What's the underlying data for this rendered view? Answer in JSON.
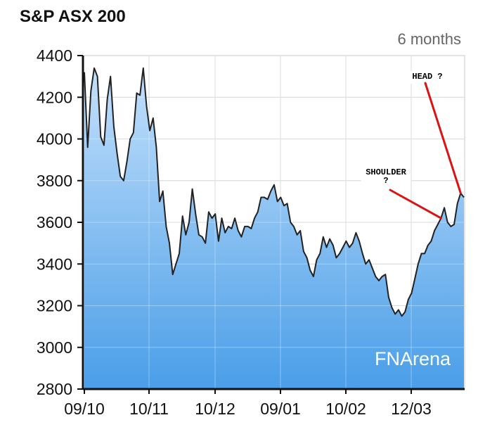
{
  "chart_data": {
    "type": "area",
    "title": "S&P ASX 200",
    "period_label": "6 months",
    "watermark": "FNArena",
    "xlabel": "",
    "ylabel": "",
    "ylim": [
      2800,
      4400
    ],
    "yticks": [
      2800,
      3000,
      3200,
      3400,
      3600,
      3800,
      4000,
      4200,
      4400
    ],
    "xticks": [
      "09/10",
      "10/11",
      "10/12",
      "09/01",
      "10/02",
      "12/03"
    ],
    "grid": true,
    "colors": {
      "line": "#222222",
      "area_top": "#c4e0fb",
      "area_bottom": "#4a9ee8",
      "grid": "#c8c8c8",
      "axis": "#111111",
      "annotation": "#dd1111",
      "watermark": "#ffffff",
      "period": "#666666"
    },
    "series": [
      {
        "name": "",
        "values": [
          4320,
          3960,
          4230,
          4340,
          4300,
          4010,
          3970,
          4190,
          4300,
          4060,
          3930,
          3820,
          3800,
          3890,
          4000,
          4030,
          4220,
          4210,
          4340,
          4160,
          4040,
          4100,
          3960,
          3700,
          3750,
          3580,
          3500,
          3350,
          3400,
          3450,
          3630,
          3540,
          3600,
          3760,
          3640,
          3540,
          3530,
          3500,
          3650,
          3620,
          3640,
          3510,
          3620,
          3550,
          3580,
          3570,
          3620,
          3560,
          3530,
          3580,
          3580,
          3570,
          3620,
          3650,
          3720,
          3720,
          3710,
          3750,
          3780,
          3700,
          3720,
          3680,
          3690,
          3600,
          3580,
          3540,
          3560,
          3460,
          3430,
          3370,
          3340,
          3420,
          3450,
          3530,
          3480,
          3520,
          3490,
          3430,
          3450,
          3480,
          3510,
          3480,
          3500,
          3550,
          3510,
          3450,
          3400,
          3420,
          3380,
          3340,
          3320,
          3340,
          3350,
          3240,
          3190,
          3160,
          3180,
          3150,
          3170,
          3230,
          3260,
          3330,
          3400,
          3450,
          3450,
          3490,
          3510,
          3560,
          3590,
          3620,
          3670,
          3600,
          3580,
          3590,
          3690,
          3740,
          3720
        ]
      }
    ],
    "annotations": [
      {
        "label": "HEAD ?",
        "point_index": 115
      },
      {
        "label": "SHOULDER\n?",
        "point_index": 109
      }
    ]
  }
}
